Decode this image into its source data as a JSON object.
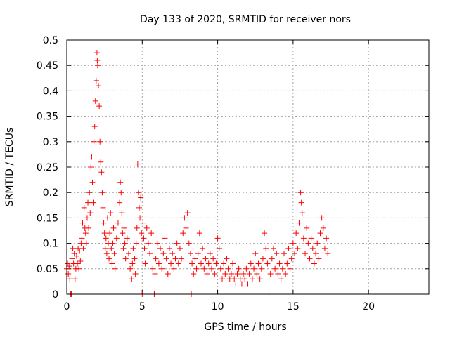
{
  "chart_data": {
    "type": "scatter",
    "title": "Day 133 of 2020, SRMTID for receiver nors",
    "xlabel": "GPS time / hours",
    "ylabel": "SRMTID / TECUs",
    "xlim": [
      0,
      24
    ],
    "ylim": [
      0,
      0.5
    ],
    "xticks": [
      0,
      5,
      10,
      15,
      20
    ],
    "xtick_labels": [
      "0",
      "5",
      "10",
      "15",
      "20"
    ],
    "yticks": [
      0,
      0.05,
      0.1,
      0.15,
      0.2,
      0.25,
      0.3,
      0.35,
      0.4,
      0.45,
      0.5
    ],
    "ytick_labels": [
      "0",
      "0.05",
      "0.1",
      "0.15",
      "0.2",
      "0.25",
      "0.3",
      "0.35",
      "0.4",
      "0.45",
      "0.5"
    ],
    "grid": true,
    "legend": "none",
    "marker": "plus",
    "color": "#ff0000",
    "series": [
      {
        "points": [
          [
            0.0,
            0.05
          ],
          [
            0.05,
            0.06
          ],
          [
            0.1,
            0.04
          ],
          [
            0.15,
            0.055
          ],
          [
            0.2,
            0.03
          ],
          [
            0.25,
            0.0
          ],
          [
            0.3,
            0.0
          ],
          [
            0.35,
            0.07
          ],
          [
            0.4,
            0.09
          ],
          [
            0.45,
            0.06
          ],
          [
            0.5,
            0.08
          ],
          [
            0.55,
            0.03
          ],
          [
            0.6,
            0.05
          ],
          [
            0.65,
            0.075
          ],
          [
            0.7,
            0.06
          ],
          [
            0.75,
            0.09
          ],
          [
            0.8,
            0.05
          ],
          [
            0.85,
            0.085
          ],
          [
            0.9,
            0.065
          ],
          [
            0.95,
            0.1
          ],
          [
            1.0,
            0.11
          ],
          [
            1.05,
            0.14
          ],
          [
            1.1,
            0.09
          ],
          [
            1.15,
            0.17
          ],
          [
            1.2,
            0.13
          ],
          [
            1.25,
            0.12
          ],
          [
            1.3,
            0.1
          ],
          [
            1.35,
            0.15
          ],
          [
            1.4,
            0.18
          ],
          [
            1.45,
            0.13
          ],
          [
            1.5,
            0.2
          ],
          [
            1.55,
            0.16
          ],
          [
            1.6,
            0.25
          ],
          [
            1.65,
            0.27
          ],
          [
            1.7,
            0.22
          ],
          [
            1.75,
            0.18
          ],
          [
            1.8,
            0.3
          ],
          [
            1.85,
            0.33
          ],
          [
            1.9,
            0.38
          ],
          [
            1.95,
            0.42
          ],
          [
            2.0,
            0.475
          ],
          [
            2.02,
            0.46
          ],
          [
            2.05,
            0.45
          ],
          [
            2.1,
            0.41
          ],
          [
            2.15,
            0.37
          ],
          [
            2.2,
            0.3
          ],
          [
            2.25,
            0.26
          ],
          [
            2.3,
            0.24
          ],
          [
            2.35,
            0.2
          ],
          [
            2.4,
            0.17
          ],
          [
            2.45,
            0.14
          ],
          [
            2.5,
            0.12
          ],
          [
            2.55,
            0.09
          ],
          [
            2.6,
            0.11
          ],
          [
            2.65,
            0.08
          ],
          [
            2.7,
            0.15
          ],
          [
            2.75,
            0.1
          ],
          [
            2.8,
            0.07
          ],
          [
            2.85,
            0.12
          ],
          [
            2.9,
            0.16
          ],
          [
            2.95,
            0.09
          ],
          [
            3.0,
            0.06
          ],
          [
            3.05,
            0.1
          ],
          [
            3.1,
            0.13
          ],
          [
            3.15,
            0.08
          ],
          [
            3.2,
            0.05
          ],
          [
            3.3,
            0.11
          ],
          [
            3.4,
            0.14
          ],
          [
            3.5,
            0.18
          ],
          [
            3.55,
            0.22
          ],
          [
            3.6,
            0.2
          ],
          [
            3.65,
            0.16
          ],
          [
            3.7,
            0.12
          ],
          [
            3.75,
            0.09
          ],
          [
            3.8,
            0.13
          ],
          [
            3.85,
            0.1
          ],
          [
            3.9,
            0.07
          ],
          [
            4.0,
            0.11
          ],
          [
            4.1,
            0.08
          ],
          [
            4.2,
            0.05
          ],
          [
            4.3,
            0.03
          ],
          [
            4.35,
            0.06
          ],
          [
            4.4,
            0.09
          ],
          [
            4.5,
            0.07
          ],
          [
            4.55,
            0.04
          ],
          [
            4.6,
            0.1
          ],
          [
            4.65,
            0.13
          ],
          [
            4.7,
            0.256
          ],
          [
            4.75,
            0.2
          ],
          [
            4.8,
            0.17
          ],
          [
            4.85,
            0.15
          ],
          [
            4.9,
            0.19
          ],
          [
            4.95,
            0.12
          ],
          [
            5.0,
            0.0
          ],
          [
            5.05,
            0.14
          ],
          [
            5.1,
            0.11
          ],
          [
            5.15,
            0.09
          ],
          [
            5.2,
            0.06
          ],
          [
            5.3,
            0.13
          ],
          [
            5.4,
            0.1
          ],
          [
            5.5,
            0.08
          ],
          [
            5.6,
            0.12
          ],
          [
            5.7,
            0.05
          ],
          [
            5.8,
            0.0
          ],
          [
            5.85,
            0.04
          ],
          [
            5.9,
            0.07
          ],
          [
            6.0,
            0.1
          ],
          [
            6.1,
            0.06
          ],
          [
            6.2,
            0.09
          ],
          [
            6.3,
            0.05
          ],
          [
            6.4,
            0.08
          ],
          [
            6.5,
            0.11
          ],
          [
            6.6,
            0.07
          ],
          [
            6.7,
            0.04
          ],
          [
            6.8,
            0.09
          ],
          [
            6.9,
            0.06
          ],
          [
            7.0,
            0.08
          ],
          [
            7.1,
            0.05
          ],
          [
            7.2,
            0.07
          ],
          [
            7.3,
            0.1
          ],
          [
            7.4,
            0.06
          ],
          [
            7.5,
            0.09
          ],
          [
            7.6,
            0.07
          ],
          [
            7.7,
            0.12
          ],
          [
            7.8,
            0.15
          ],
          [
            7.9,
            0.13
          ],
          [
            8.0,
            0.16
          ],
          [
            8.1,
            0.1
          ],
          [
            8.2,
            0.08
          ],
          [
            8.25,
            0.0
          ],
          [
            8.3,
            0.06
          ],
          [
            8.4,
            0.04
          ],
          [
            8.5,
            0.07
          ],
          [
            8.6,
            0.05
          ],
          [
            8.7,
            0.08
          ],
          [
            8.8,
            0.12
          ],
          [
            8.9,
            0.06
          ],
          [
            9.0,
            0.09
          ],
          [
            9.1,
            0.05
          ],
          [
            9.2,
            0.07
          ],
          [
            9.3,
            0.04
          ],
          [
            9.4,
            0.06
          ],
          [
            9.5,
            0.08
          ],
          [
            9.6,
            0.05
          ],
          [
            9.7,
            0.07
          ],
          [
            9.8,
            0.04
          ],
          [
            9.9,
            0.06
          ],
          [
            10.0,
            0.11
          ],
          [
            10.1,
            0.09
          ],
          [
            10.2,
            0.05
          ],
          [
            10.3,
            0.03
          ],
          [
            10.4,
            0.06
          ],
          [
            10.5,
            0.04
          ],
          [
            10.6,
            0.07
          ],
          [
            10.7,
            0.05
          ],
          [
            10.8,
            0.03
          ],
          [
            10.9,
            0.04
          ],
          [
            11.0,
            0.06
          ],
          [
            11.1,
            0.03
          ],
          [
            11.2,
            0.02
          ],
          [
            11.3,
            0.04
          ],
          [
            11.4,
            0.05
          ],
          [
            11.5,
            0.03
          ],
          [
            11.6,
            0.02
          ],
          [
            11.7,
            0.04
          ],
          [
            11.8,
            0.03
          ],
          [
            11.9,
            0.05
          ],
          [
            12.0,
            0.02
          ],
          [
            12.1,
            0.04
          ],
          [
            12.2,
            0.06
          ],
          [
            12.3,
            0.03
          ],
          [
            12.4,
            0.05
          ],
          [
            12.5,
            0.08
          ],
          [
            12.6,
            0.04
          ],
          [
            12.7,
            0.06
          ],
          [
            12.8,
            0.03
          ],
          [
            12.9,
            0.05
          ],
          [
            13.0,
            0.07
          ],
          [
            13.1,
            0.12
          ],
          [
            13.2,
            0.09
          ],
          [
            13.3,
            0.06
          ],
          [
            13.4,
            0.0
          ],
          [
            13.5,
            0.04
          ],
          [
            13.6,
            0.07
          ],
          [
            13.7,
            0.09
          ],
          [
            13.8,
            0.05
          ],
          [
            13.9,
            0.08
          ],
          [
            14.0,
            0.04
          ],
          [
            14.1,
            0.06
          ],
          [
            14.2,
            0.03
          ],
          [
            14.3,
            0.05
          ],
          [
            14.4,
            0.08
          ],
          [
            14.5,
            0.04
          ],
          [
            14.6,
            0.06
          ],
          [
            14.7,
            0.09
          ],
          [
            14.8,
            0.05
          ],
          [
            14.9,
            0.07
          ],
          [
            15.0,
            0.1
          ],
          [
            15.1,
            0.08
          ],
          [
            15.2,
            0.12
          ],
          [
            15.3,
            0.09
          ],
          [
            15.4,
            0.14
          ],
          [
            15.5,
            0.2
          ],
          [
            15.55,
            0.18
          ],
          [
            15.6,
            0.16
          ],
          [
            15.7,
            0.11
          ],
          [
            15.8,
            0.08
          ],
          [
            15.9,
            0.13
          ],
          [
            16.0,
            0.1
          ],
          [
            16.1,
            0.07
          ],
          [
            16.2,
            0.11
          ],
          [
            16.3,
            0.09
          ],
          [
            16.4,
            0.06
          ],
          [
            16.5,
            0.08
          ],
          [
            16.6,
            0.1
          ],
          [
            16.7,
            0.07
          ],
          [
            16.8,
            0.12
          ],
          [
            16.9,
            0.15
          ],
          [
            17.0,
            0.13
          ],
          [
            17.1,
            0.09
          ],
          [
            17.2,
            0.11
          ],
          [
            17.3,
            0.08
          ]
        ]
      }
    ]
  }
}
